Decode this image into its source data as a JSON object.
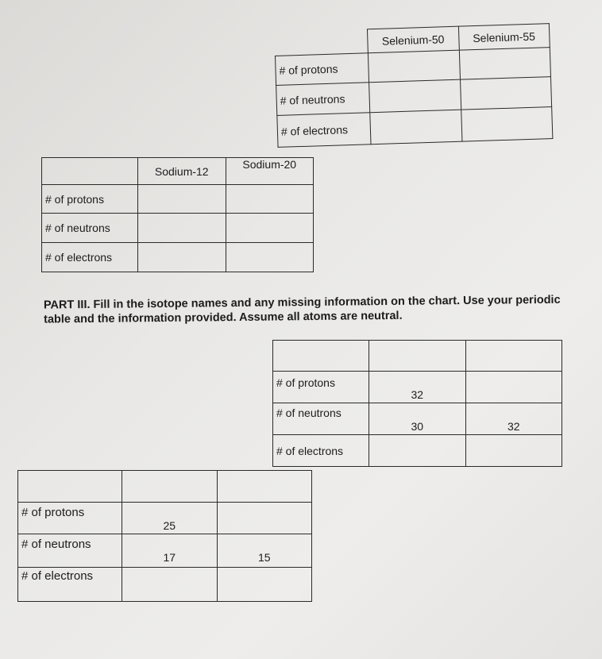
{
  "row_labels": [
    "# of protons",
    "# of neutrons",
    "# of electrons"
  ],
  "selenium_table": {
    "headers": [
      "",
      "Selenium-50",
      "Selenium-55"
    ]
  },
  "sodium_table": {
    "headers": [
      "",
      "Sodium-12",
      "Sodium-20"
    ]
  },
  "part3": {
    "instructions": "PART III. Fill in the isotope names and any missing information on the chart. Use your periodic table and the information provided. Assume all atoms are neutral.",
    "table1": {
      "protons": [
        "32",
        ""
      ],
      "neutrons": [
        "30",
        "32"
      ],
      "electrons": [
        "",
        ""
      ]
    },
    "table2": {
      "protons": [
        "25",
        ""
      ],
      "neutrons": [
        "17",
        "15"
      ],
      "electrons": [
        "",
        ""
      ]
    }
  }
}
